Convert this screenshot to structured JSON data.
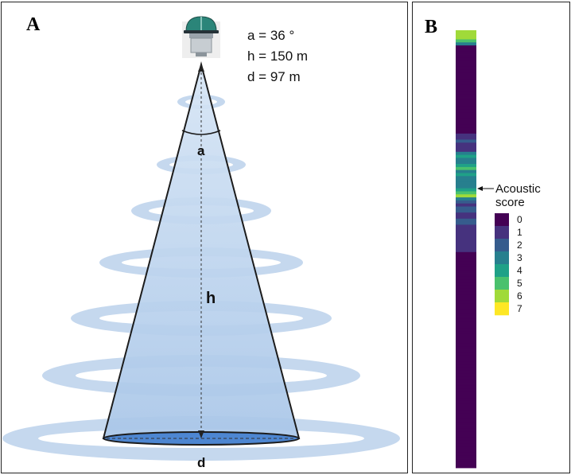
{
  "panel_a": {
    "label": "A",
    "params": [
      "a = 36 °",
      "h = 150 m",
      "d = 97 m"
    ],
    "angle_label": "a",
    "height_label": "h",
    "diameter_label": "d"
  },
  "panel_b": {
    "label": "B",
    "pointer_label_line1": "Acoustic",
    "pointer_label_line2": "score",
    "legend_ticks": [
      "0",
      "1",
      "2",
      "3",
      "4",
      "5",
      "6",
      "7"
    ],
    "scale_colors": [
      "#440154",
      "#46327e",
      "#365c8d",
      "#277f8e",
      "#1fa187",
      "#4ac16d",
      "#a0da39",
      "#fde725"
    ],
    "column_scores": [
      6,
      6,
      6,
      5,
      3,
      0,
      0,
      0,
      0,
      0,
      0,
      0,
      0,
      0,
      0,
      0,
      0,
      0,
      0,
      0,
      0,
      0,
      0,
      0,
      0,
      0,
      0,
      0,
      0,
      0,
      0,
      0,
      0,
      0,
      1,
      1,
      2,
      1,
      1,
      1,
      3,
      4,
      3,
      3,
      4,
      5,
      3,
      4,
      3,
      3,
      3,
      3,
      4,
      5,
      6,
      3,
      2,
      1,
      2,
      2,
      1,
      1,
      2,
      2,
      1,
      1,
      1,
      1,
      1,
      1,
      1,
      1,
      1,
      0,
      0,
      0,
      0,
      0,
      0,
      0,
      0,
      0,
      0,
      0,
      0,
      0,
      0,
      0,
      0,
      0,
      0,
      0,
      0,
      0,
      0,
      0,
      0,
      0,
      0,
      0,
      0,
      0,
      0,
      0,
      0,
      0,
      0,
      0,
      0,
      0,
      0,
      0,
      0,
      0,
      0,
      0,
      0,
      0,
      0,
      0,
      0,
      0,
      0,
      0,
      0,
      0,
      0,
      0,
      0,
      0,
      0,
      0,
      0,
      0,
      0,
      0,
      0,
      0,
      0,
      0,
      0,
      0,
      0,
      0
    ]
  }
}
